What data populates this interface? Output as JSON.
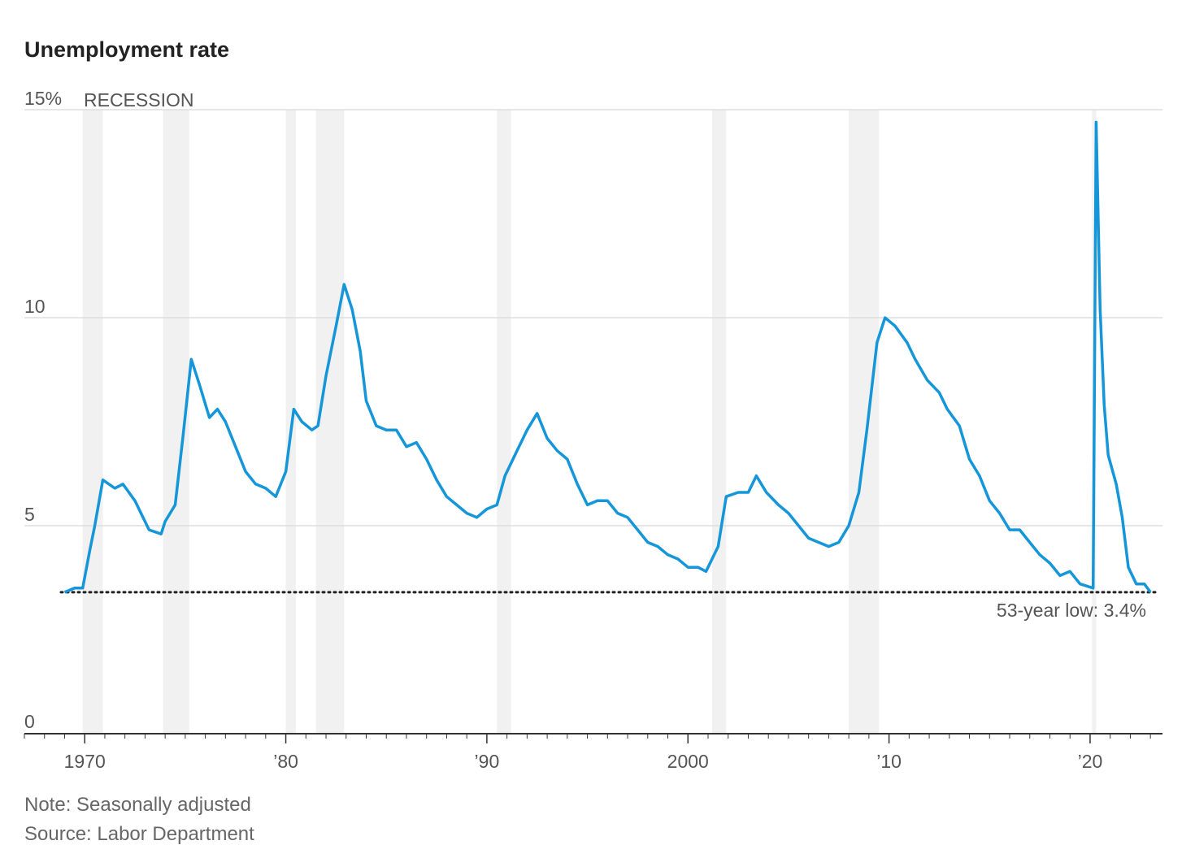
{
  "chart_data": {
    "type": "line",
    "title": "Unemployment rate",
    "legend": "RECESSION",
    "color": "#1596d8",
    "recession_color": "#f1f1f1",
    "x": [
      1969.0,
      1969.5,
      1969.9,
      1970.25,
      1970.5,
      1970.9,
      1971.5,
      1971.9,
      1972.5,
      1972.9,
      1973.2,
      1973.8,
      1974.0,
      1974.5,
      1974.9,
      1975.3,
      1975.7,
      1976.2,
      1976.6,
      1977.0,
      1977.5,
      1978.0,
      1978.5,
      1979.0,
      1979.5,
      1980.0,
      1980.4,
      1980.8,
      1981.3,
      1981.6,
      1982.0,
      1982.5,
      1982.9,
      1983.3,
      1983.7,
      1984.0,
      1984.5,
      1985.0,
      1985.5,
      1986.0,
      1986.5,
      1987.0,
      1987.5,
      1988.0,
      1988.5,
      1989.0,
      1989.5,
      1990.0,
      1990.5,
      1990.9,
      1991.5,
      1992.0,
      1992.5,
      1993.0,
      1993.5,
      1994.0,
      1994.5,
      1995.0,
      1995.5,
      1996.0,
      1996.5,
      1997.0,
      1997.5,
      1998.0,
      1998.5,
      1999.0,
      1999.5,
      2000.0,
      2000.5,
      2000.9,
      2001.5,
      2001.9,
      2002.5,
      2003.0,
      2003.4,
      2003.9,
      2004.5,
      2005.0,
      2005.5,
      2006.0,
      2006.5,
      2007.0,
      2007.5,
      2008.0,
      2008.5,
      2008.9,
      2009.4,
      2009.8,
      2010.3,
      2010.9,
      2011.3,
      2011.9,
      2012.5,
      2012.9,
      2013.5,
      2014.0,
      2014.5,
      2015.0,
      2015.5,
      2016.0,
      2016.5,
      2017.0,
      2017.5,
      2018.0,
      2018.5,
      2019.0,
      2019.5,
      2020.15,
      2020.3,
      2020.5,
      2020.7,
      2020.9,
      2021.3,
      2021.6,
      2021.9,
      2022.3,
      2022.7,
      2023.0
    ],
    "values": [
      3.4,
      3.5,
      3.5,
      4.4,
      5.0,
      6.1,
      5.9,
      6.0,
      5.6,
      5.2,
      4.9,
      4.8,
      5.1,
      5.5,
      7.2,
      9.0,
      8.4,
      7.6,
      7.8,
      7.5,
      6.9,
      6.3,
      6.0,
      5.9,
      5.7,
      6.3,
      7.8,
      7.5,
      7.3,
      7.4,
      8.6,
      9.8,
      10.8,
      10.2,
      9.2,
      8.0,
      7.4,
      7.3,
      7.3,
      6.9,
      7.0,
      6.6,
      6.1,
      5.7,
      5.5,
      5.3,
      5.2,
      5.4,
      5.5,
      6.2,
      6.8,
      7.3,
      7.7,
      7.1,
      6.8,
      6.6,
      6.0,
      5.5,
      5.6,
      5.6,
      5.3,
      5.2,
      4.9,
      4.6,
      4.5,
      4.3,
      4.2,
      4.0,
      4.0,
      3.9,
      4.5,
      5.7,
      5.8,
      5.8,
      6.2,
      5.8,
      5.5,
      5.3,
      5.0,
      4.7,
      4.6,
      4.5,
      4.6,
      5.0,
      5.8,
      7.3,
      9.4,
      10.0,
      9.8,
      9.4,
      9.0,
      8.5,
      8.2,
      7.8,
      7.4,
      6.6,
      6.2,
      5.6,
      5.3,
      4.9,
      4.9,
      4.6,
      4.3,
      4.1,
      3.8,
      3.9,
      3.6,
      3.5,
      14.7,
      10.2,
      7.9,
      6.7,
      6.0,
      5.2,
      4.0,
      3.6,
      3.6,
      3.4
    ],
    "recessions": [
      [
        1969.9,
        1970.9
      ],
      [
        1973.9,
        1975.2
      ],
      [
        1980.0,
        1980.5
      ],
      [
        1981.5,
        1982.9
      ],
      [
        1990.5,
        1991.2
      ],
      [
        2001.2,
        2001.9
      ],
      [
        2008.0,
        2009.5
      ],
      [
        2020.1,
        2020.3
      ]
    ],
    "reference_line": 3.4,
    "annotation": "53-year low: 3.4%",
    "xlim": [
      1967,
      2023.6
    ],
    "ylim": [
      0,
      15
    ],
    "xticks": [
      1970,
      {
        "value": 1980,
        "label": "’80"
      },
      {
        "value": 1990,
        "label": "’90"
      },
      2000,
      {
        "value": 2010,
        "label": "’10"
      },
      {
        "value": 2020,
        "label": "’20"
      }
    ],
    "minor_xticks": [
      1967,
      1968,
      1969,
      1971,
      1972,
      1973,
      1974,
      1975,
      1976,
      1977,
      1978,
      1979,
      1981,
      1982,
      1983,
      1984,
      1985,
      1986,
      1987,
      1988,
      1989,
      1991,
      1992,
      1993,
      1994,
      1995,
      1996,
      1997,
      1998,
      1999,
      2001,
      2002,
      2003,
      2004,
      2005,
      2006,
      2007,
      2008,
      2009,
      2011,
      2012,
      2013,
      2014,
      2015,
      2016,
      2017,
      2018,
      2019,
      2021,
      2022,
      2023
    ],
    "yticks": [
      0,
      5,
      10,
      {
        "value": 15,
        "label": "15%"
      }
    ],
    "grid": true,
    "note": "Note: Seasonally adjusted",
    "source": "Source: Labor Department"
  }
}
